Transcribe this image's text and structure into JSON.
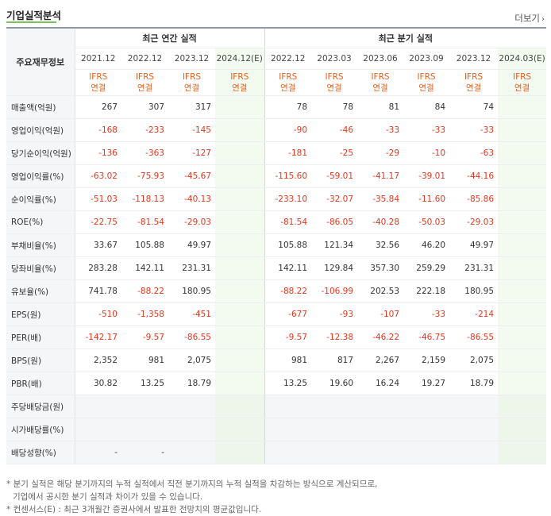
{
  "header": {
    "title": "기업실적분석",
    "more_label": "더보기",
    "more_icon": "chevron-right-icon"
  },
  "table": {
    "corner_label": "주요재무정보",
    "annual_group": "최근 연간 실적",
    "quarter_group": "최근 분기 실적",
    "annual_dates": [
      "2021.12",
      "2022.12",
      "2023.12",
      "2024.12(E)"
    ],
    "quarter_dates": [
      "2022.12",
      "2023.03",
      "2023.06",
      "2023.09",
      "2023.12",
      "2024.03(E)"
    ],
    "ifrs": "IFRS",
    "consol": "연결",
    "rows": [
      {
        "label": "매출액(억원)",
        "values": [
          "267",
          "307",
          "317",
          "",
          "78",
          "78",
          "81",
          "84",
          "74",
          ""
        ],
        "group_start": true
      },
      {
        "label": "영업이익(억원)",
        "values": [
          "-168",
          "-233",
          "-145",
          "",
          "-90",
          "-46",
          "-33",
          "-33",
          "-33",
          ""
        ]
      },
      {
        "label": "당기순이익(억원)",
        "values": [
          "-136",
          "-363",
          "-127",
          "",
          "-181",
          "-25",
          "-29",
          "-10",
          "-63",
          ""
        ]
      },
      {
        "label": "영업이익률(%)",
        "values": [
          "-63.02",
          "-75.93",
          "-45.67",
          "",
          "-115.60",
          "-59.01",
          "-41.17",
          "-39.01",
          "-44.16",
          ""
        ],
        "group_start": true
      },
      {
        "label": "순이익률(%)",
        "values": [
          "-51.03",
          "-118.13",
          "-40.13",
          "",
          "-233.10",
          "-32.07",
          "-35.84",
          "-11.60",
          "-85.86",
          ""
        ]
      },
      {
        "label": "ROE(%)",
        "values": [
          "-22.75",
          "-81.54",
          "-29.03",
          "",
          "-81.54",
          "-86.05",
          "-40.28",
          "-50.03",
          "-29.03",
          ""
        ]
      },
      {
        "label": "부채비율(%)",
        "values": [
          "33.67",
          "105.88",
          "49.97",
          "",
          "105.88",
          "121.34",
          "32.56",
          "46.20",
          "49.97",
          ""
        ],
        "group_start": true
      },
      {
        "label": "당좌비율(%)",
        "values": [
          "283.28",
          "142.11",
          "231.31",
          "",
          "142.11",
          "129.84",
          "357.30",
          "259.29",
          "231.31",
          ""
        ]
      },
      {
        "label": "유보율(%)",
        "values": [
          "741.78",
          "-88.22",
          "180.95",
          "",
          "-88.22",
          "-106.99",
          "202.53",
          "222.18",
          "180.95",
          ""
        ]
      },
      {
        "label": "EPS(원)",
        "values": [
          "-510",
          "-1,358",
          "-451",
          "",
          "-677",
          "-93",
          "-107",
          "-33",
          "-214",
          ""
        ],
        "group_start": true
      },
      {
        "label": "PER(배)",
        "values": [
          "-142.17",
          "-9.57",
          "-86.55",
          "",
          "-9.57",
          "-12.38",
          "-46.22",
          "-46.75",
          "-86.55",
          ""
        ]
      },
      {
        "label": "BPS(원)",
        "values": [
          "2,352",
          "981",
          "2,075",
          "",
          "981",
          "817",
          "2,267",
          "2,159",
          "2,075",
          ""
        ]
      },
      {
        "label": "PBR(배)",
        "values": [
          "30.82",
          "13.25",
          "18.79",
          "",
          "13.25",
          "19.60",
          "16.24",
          "19.27",
          "18.79",
          ""
        ]
      },
      {
        "label": "주당배당금(원)",
        "values": [
          "",
          "",
          "",
          "",
          "",
          "",
          "",
          "",
          "",
          ""
        ],
        "group_start": true,
        "gray": true
      },
      {
        "label": "시가배당률(%)",
        "values": [
          "",
          "",
          "",
          "",
          "",
          "",
          "",
          "",
          "",
          ""
        ],
        "gray": true
      },
      {
        "label": "배당성향(%)",
        "values": [
          "-",
          "-",
          "",
          "",
          "",
          "",
          "",
          "",
          "",
          ""
        ],
        "gray": true
      }
    ]
  },
  "notes": {
    "line1": "* 분기 실적은 해당 분기까지의 누적 실적에서 직전 분기까지의 누적 실적을 차감하는 방식으로 계산되므로,",
    "line2": "기업에서 공시한 분기 실적과 차이가 있을 수 있습니다.",
    "line3": "* 컨센서스(E) : 최근 3개월간 증권사에서 발표한 전망치의 평균값입니다."
  },
  "colors": {
    "negative": "#e4361c",
    "ifrs": "#e4601c",
    "estimate_bg": "#f3faef",
    "accent": "#7cbf63"
  }
}
